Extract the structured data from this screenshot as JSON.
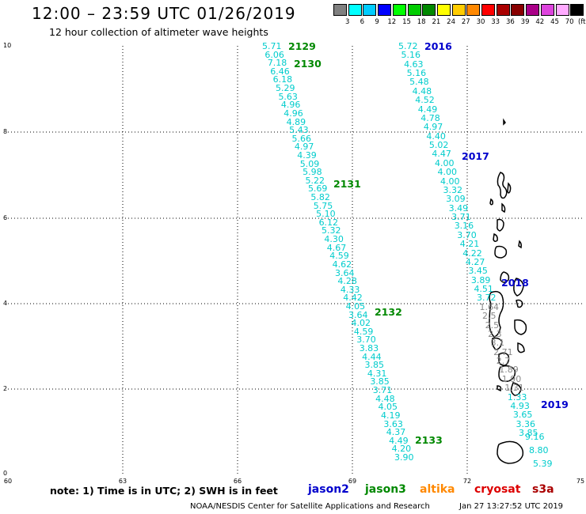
{
  "header": {
    "title": "12:00 – 23:59 UTC 01/26/2019",
    "subtitle": "12 hour collection of altimeter wave heights"
  },
  "colorbar": {
    "colors": [
      "#808080",
      "#00ffff",
      "#00ccff",
      "#0000ff",
      "#00ff00",
      "#00cc00",
      "#008800",
      "#ffff00",
      "#ffcc00",
      "#ff8800",
      "#ff0000",
      "#aa0000",
      "#880000",
      "#aa0088",
      "#dd44dd",
      "#ffaaff",
      "#000000"
    ],
    "labels": [
      "3",
      "6",
      "9",
      "12",
      "15",
      "18",
      "21",
      "24",
      "27",
      "30",
      "33",
      "36",
      "39",
      "42",
      "45",
      "70"
    ],
    "unit": "(ft)"
  },
  "axes": {
    "y_ticks": [
      "10",
      "8",
      "6",
      "4",
      "2",
      "0"
    ],
    "x_ticks": [
      "60",
      "63",
      "66",
      "69",
      "72",
      "75"
    ]
  },
  "orbit_labels": [
    {
      "text": "2129",
      "color": "#008800"
    },
    {
      "text": "2130",
      "color": "#008800"
    },
    {
      "text": "2131",
      "color": "#008800"
    },
    {
      "text": "2132",
      "color": "#008800"
    },
    {
      "text": "2133",
      "color": "#008800"
    },
    {
      "text": "2016",
      "color": "#0000cc"
    },
    {
      "text": "2017",
      "color": "#0000cc"
    },
    {
      "text": "2018",
      "color": "#0000cc"
    },
    {
      "text": "2019",
      "color": "#0000cc"
    }
  ],
  "track_west": [
    "5.71",
    "6.06",
    "7.18",
    "6.46",
    "6.18",
    "5.29",
    "5.63",
    "4.96",
    "4.96",
    "4.89",
    "5.43",
    "5.66",
    "4.97",
    "4.39",
    "5.09",
    "5.98",
    "5.22",
    "5.69",
    "5.82",
    "5.75",
    "5.10",
    "6.12",
    "5.32",
    "4.30",
    "4.67",
    "4.59",
    "4.62",
    "3.64",
    "4.28",
    "4.33",
    "4.42",
    "4.05",
    "3.64",
    "4.02",
    "4.59",
    "3.70",
    "3.83",
    "4.44",
    "3.85",
    "4.31",
    "3.85",
    "3.71",
    "4.48",
    "4.05",
    "4.19",
    "3.63",
    "4.37",
    "4.49",
    "4.20",
    "3.90"
  ],
  "track_east": [
    "5.72",
    "5.16",
    "4.63",
    "5.16",
    "5.48",
    "4.48",
    "4.52",
    "4.49",
    "4.78",
    "4.97",
    "4.40",
    "5.02",
    "4.47",
    "4.00",
    "4.00",
    "4.00",
    "3.32",
    "3.09",
    "3.49",
    "3.71",
    "3.16",
    "3.70",
    "4.21",
    "4.22",
    "4.27",
    "3.45",
    "3.89",
    "4.51",
    "3.72",
    "1.64",
    "2.5",
    "2.5",
    "2.3",
    "3.1",
    "2.71",
    "2.7",
    "1.89",
    "1.90",
    "1.31",
    "1.33",
    "4.93",
    "3.65",
    "3.36",
    "3.85",
    "9.16",
    "8.80",
    "5.39"
  ],
  "note": "note: 1) Time is in UTC; 2) SWH is in feet",
  "satellites": [
    {
      "name": "jason2",
      "color": "#0000cc"
    },
    {
      "name": "jason3",
      "color": "#008800"
    },
    {
      "name": "altika",
      "color": "#ff8800"
    },
    {
      "name": "cryosat",
      "color": "#dd0000"
    },
    {
      "name": "s3a",
      "color": "#aa0000"
    }
  ],
  "footer": "NOAA/NESDIS Center for Satellite Applications and Research",
  "timestamp": "Jan 27 13:27:52 UTC 2019"
}
